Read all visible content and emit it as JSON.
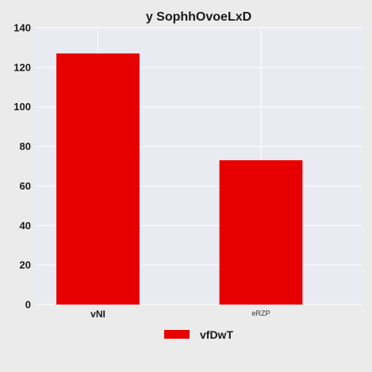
{
  "chart_data": {
    "type": "bar",
    "title": "y SophhOvoeLxD",
    "categories": [
      "vNI",
      "eRZP"
    ],
    "series": [
      {
        "name": "vfDwT",
        "values": [
          127,
          73
        ],
        "color": "#e60000"
      }
    ],
    "xlabel": "",
    "ylabel": "",
    "ylim": [
      0,
      140
    ],
    "yticks": [
      0,
      20,
      40,
      60,
      80,
      100,
      120,
      140
    ],
    "grid": true,
    "legend_position": "bottom-center",
    "plot_background": "#eaeaf2",
    "grid_color": "#ffffff"
  }
}
